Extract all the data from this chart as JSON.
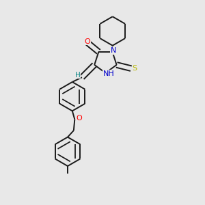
{
  "bg_color": "#e8e8e8",
  "bond_color": "#1a1a1a",
  "O_color": "#ff0000",
  "N_color": "#0000cc",
  "S_color": "#b8b800",
  "H_color": "#008080",
  "lw": 1.4,
  "doff": 0.13,
  "xlim": [
    0,
    6
  ],
  "ylim": [
    0,
    10
  ],
  "figsize": [
    3.0,
    3.0
  ],
  "dpi": 100
}
